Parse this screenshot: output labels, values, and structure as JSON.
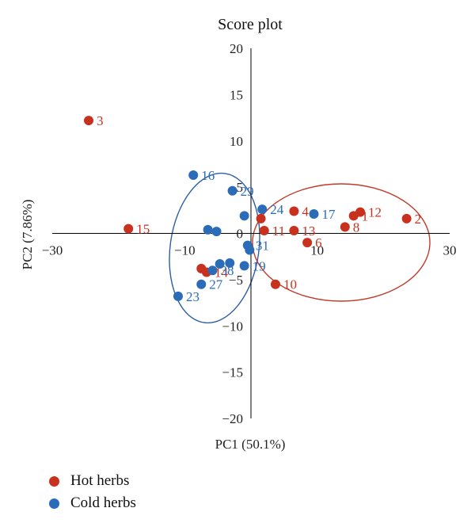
{
  "colors": {
    "hot": "#c8311e",
    "cold": "#2b6cb8"
  },
  "chart_data": {
    "type": "scatter",
    "title": "Score plot",
    "xlabel": "PC1 (50.1%)",
    "ylabel": "PC2 (7.86%)",
    "xlim": [
      -30,
      30
    ],
    "ylim": [
      -20,
      20
    ],
    "xticks": [
      "−30",
      "−10",
      "10",
      "30"
    ],
    "xtick_values": [
      -30,
      -10,
      10,
      30
    ],
    "yticks": [
      "20",
      "15",
      "10",
      "5",
      "0",
      "−5",
      "−10",
      "−15",
      "−20"
    ],
    "ytick_values": [
      20,
      15,
      10,
      5,
      0,
      -5,
      -10,
      -15,
      -20
    ],
    "grid": false,
    "legend_position": "bottom-left",
    "series": [
      {
        "name": "Hot herbs",
        "color_key": "hot",
        "points": [
          {
            "label": "1",
            "x": 15.5,
            "y": 1.9
          },
          {
            "label": "2",
            "x": 23.5,
            "y": 1.6
          },
          {
            "label": "3",
            "x": -24.5,
            "y": 12.2
          },
          {
            "label": "4",
            "x": 6.5,
            "y": 2.4
          },
          {
            "label": "6",
            "x": 8.5,
            "y": -1.0
          },
          {
            "label": "7",
            "x": -7.5,
            "y": -3.8
          },
          {
            "label": "8",
            "x": 14.2,
            "y": 0.7
          },
          {
            "label": "9",
            "x": 1.5,
            "y": 1.6
          },
          {
            "label": "10",
            "x": 3.7,
            "y": -5.5
          },
          {
            "label": "11",
            "x": 2.0,
            "y": 0.3
          },
          {
            "label": "12",
            "x": 16.5,
            "y": 2.3
          },
          {
            "label": "13",
            "x": 6.5,
            "y": 0.3
          },
          {
            "label": "14",
            "x": -6.7,
            "y": -4.2
          },
          {
            "label": "15",
            "x": -18.5,
            "y": 0.5
          }
        ]
      },
      {
        "name": "Cold herbs",
        "color_key": "cold",
        "points": [
          {
            "label": "16",
            "x": -8.7,
            "y": 6.3
          },
          {
            "label": "17",
            "x": 9.5,
            "y": 2.1
          },
          {
            "label": "19",
            "x": -1.0,
            "y": -3.5
          },
          {
            "label": "20",
            "x": -6.5,
            "y": 0.4
          },
          {
            "label": "23",
            "x": -11.0,
            "y": -6.8
          },
          {
            "label": "24",
            "x": 1.7,
            "y": 2.6
          },
          {
            "label": "25",
            "x": -3.2,
            "y": -3.2
          },
          {
            "label": "27",
            "x": -7.5,
            "y": -5.5
          },
          {
            "label": "28",
            "x": -5.2,
            "y": 0.2
          },
          {
            "label": "29",
            "x": -2.8,
            "y": 4.6
          },
          {
            "label": "30",
            "x": -4.7,
            "y": -3.3
          },
          {
            "label": "31",
            "x": -0.5,
            "y": -1.3
          },
          {
            "label": "33",
            "x": -1.0,
            "y": 1.9
          },
          {
            "label": "35",
            "x": -0.2,
            "y": -1.8
          },
          {
            "label": "38",
            "x": -5.8,
            "y": -4.0
          }
        ]
      }
    ],
    "point_labels_shown": [
      "1",
      "2",
      "3",
      "4",
      "6",
      "8",
      "10",
      "11",
      "12",
      "13",
      "14",
      "15",
      "16",
      "17",
      "19",
      "23",
      "24",
      "27",
      "29",
      "31",
      "38"
    ]
  },
  "legend": [
    {
      "label": "Hot herbs",
      "color_key": "hot"
    },
    {
      "label": "Cold herbs",
      "color_key": "cold"
    }
  ]
}
